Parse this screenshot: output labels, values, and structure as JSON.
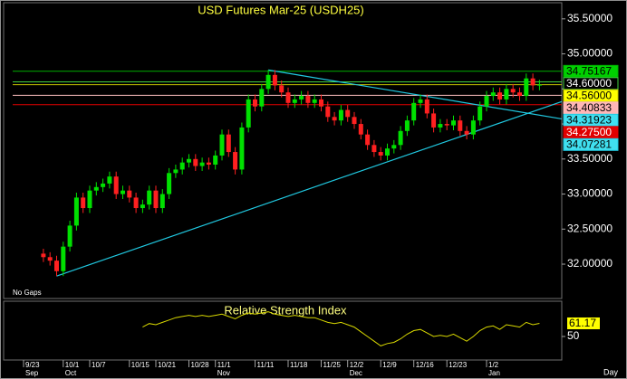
{
  "chart_data": {
    "type": "candlestick",
    "title": "USD Futures Mar-25 (USDH25)",
    "gap_mode": "No Gaps",
    "period": "Day",
    "categories": [
      "9/23",
      null,
      null,
      null,
      null,
      null,
      "10/1",
      null,
      null,
      null,
      "10/7",
      null,
      null,
      null,
      null,
      null,
      "10/15",
      null,
      null,
      null,
      "10/21",
      null,
      null,
      null,
      null,
      "10/28",
      null,
      null,
      null,
      "11/1",
      null,
      null,
      null,
      null,
      null,
      "11/11",
      null,
      null,
      null,
      null,
      "11/18",
      null,
      null,
      null,
      null,
      "11/25",
      null,
      null,
      null,
      "12/2",
      null,
      null,
      null,
      null,
      "12/9",
      null,
      null,
      null,
      null,
      "12/16",
      null,
      null,
      null,
      null,
      "12/23",
      null,
      null,
      null,
      null,
      null,
      "1/2",
      null,
      null,
      null,
      null,
      null,
      null,
      null,
      null
    ],
    "months": [
      "Sep",
      null,
      null,
      null,
      null,
      null,
      "Oct",
      null,
      null,
      null,
      null,
      null,
      null,
      null,
      null,
      null,
      null,
      null,
      null,
      null,
      null,
      null,
      null,
      null,
      null,
      null,
      null,
      null,
      null,
      "Nov",
      null,
      null,
      null,
      null,
      null,
      null,
      null,
      null,
      null,
      null,
      null,
      null,
      null,
      null,
      null,
      null,
      null,
      null,
      null,
      "Dec",
      null,
      null,
      null,
      null,
      null,
      null,
      null,
      null,
      null,
      null,
      null,
      null,
      null,
      null,
      null,
      null,
      null,
      null,
      null,
      null,
      "Jan",
      null,
      null,
      null,
      null,
      null,
      null,
      null,
      null
    ],
    "open": [
      null,
      null,
      null,
      32.15,
      32.1,
      32.05,
      31.9,
      32.25,
      32.55,
      32.95,
      32.8,
      33.05,
      33.1,
      33.15,
      33.25,
      33.0,
      33.05,
      32.95,
      32.8,
      32.85,
      33.05,
      32.8,
      33.0,
      33.3,
      33.35,
      33.45,
      33.5,
      33.4,
      33.45,
      33.42,
      33.55,
      33.85,
      33.6,
      33.35,
      33.95,
      34.35,
      34.25,
      34.5,
      34.7,
      34.55,
      34.45,
      34.3,
      34.35,
      34.4,
      34.3,
      34.35,
      34.25,
      34.1,
      34.05,
      34.2,
      34.1,
      34.0,
      33.85,
      33.7,
      33.6,
      33.55,
      33.65,
      33.7,
      33.9,
      34.05,
      34.3,
      34.35,
      34.15,
      33.95,
      34.0,
      33.98,
      34.05,
      33.9,
      33.85,
      34.05,
      34.25,
      34.4,
      34.45,
      34.35,
      34.5,
      34.45,
      34.4,
      34.65,
      34.55
    ],
    "high": [
      null,
      null,
      null,
      32.22,
      32.17,
      32.12,
      32.32,
      32.62,
      33.02,
      33.02,
      33.12,
      33.17,
      33.22,
      33.32,
      33.32,
      33.12,
      33.12,
      33.02,
      32.92,
      33.12,
      33.12,
      33.07,
      33.37,
      33.42,
      33.52,
      33.57,
      33.57,
      33.52,
      33.52,
      33.62,
      33.92,
      33.92,
      33.67,
      34.02,
      34.42,
      34.42,
      34.57,
      34.77,
      34.77,
      34.62,
      34.52,
      34.42,
      34.47,
      34.47,
      34.42,
      34.42,
      34.32,
      34.17,
      34.27,
      34.27,
      34.17,
      34.07,
      33.92,
      33.77,
      33.67,
      33.72,
      33.77,
      33.97,
      34.12,
      34.37,
      34.42,
      34.42,
      34.22,
      34.07,
      34.07,
      34.12,
      34.12,
      33.97,
      34.12,
      34.32,
      34.47,
      34.52,
      34.52,
      34.57,
      34.57,
      34.52,
      34.72,
      34.72,
      34.63
    ],
    "low": [
      null,
      null,
      null,
      32.03,
      31.98,
      31.83,
      31.83,
      32.18,
      32.48,
      32.73,
      32.73,
      32.98,
      33.03,
      33.08,
      32.93,
      32.93,
      32.88,
      32.73,
      32.73,
      32.78,
      32.73,
      32.73,
      32.93,
      33.23,
      33.28,
      33.38,
      33.33,
      33.33,
      33.35,
      33.35,
      33.48,
      33.53,
      33.28,
      33.28,
      33.88,
      34.18,
      34.18,
      34.43,
      34.48,
      34.38,
      34.23,
      34.23,
      34.28,
      34.23,
      34.23,
      34.18,
      34.03,
      33.98,
      33.98,
      34.03,
      33.93,
      33.78,
      33.63,
      33.53,
      33.48,
      33.48,
      33.58,
      33.63,
      33.83,
      33.98,
      34.23,
      34.08,
      33.88,
      33.88,
      33.91,
      33.91,
      33.83,
      33.78,
      33.78,
      33.98,
      34.18,
      34.33,
      34.28,
      34.28,
      34.38,
      34.33,
      34.33,
      34.48,
      34.48
    ],
    "close": [
      null,
      null,
      null,
      32.1,
      32.05,
      31.9,
      32.25,
      32.55,
      32.95,
      32.8,
      33.05,
      33.1,
      33.15,
      33.25,
      33.0,
      33.05,
      32.95,
      32.8,
      32.85,
      33.05,
      32.8,
      33.0,
      33.3,
      33.35,
      33.45,
      33.5,
      33.4,
      33.45,
      33.42,
      33.55,
      33.85,
      33.6,
      33.35,
      33.95,
      34.35,
      34.25,
      34.5,
      34.7,
      34.55,
      34.45,
      34.3,
      34.35,
      34.4,
      34.3,
      34.35,
      34.25,
      34.1,
      34.05,
      34.2,
      34.1,
      34.0,
      33.85,
      33.7,
      33.6,
      33.55,
      33.65,
      33.7,
      33.9,
      34.05,
      34.3,
      34.35,
      34.15,
      33.95,
      34.0,
      33.98,
      34.05,
      33.9,
      33.85,
      34.05,
      34.25,
      34.4,
      34.45,
      34.35,
      34.5,
      34.45,
      34.4,
      34.65,
      34.55,
      34.56
    ],
    "up_color": "#00e000",
    "down_color": "#ff2020",
    "ylim": [
      31.51,
      35.73
    ],
    "yticks": [
      {
        "value": 32,
        "label": "32.00000"
      },
      {
        "value": 32.5,
        "label": "32.50000"
      },
      {
        "value": 33,
        "label": "33.00000"
      },
      {
        "value": 33.5,
        "label": "33.50000"
      },
      {
        "value": 34,
        "label": "34.00000"
      },
      {
        "value": 34.5,
        "label": "34.50000"
      },
      {
        "value": 35,
        "label": "35.00000"
      },
      {
        "value": 35.5,
        "label": "35.50000"
      }
    ],
    "levels": [
      {
        "value": 34.75167,
        "label": "34.75167",
        "color": "#00b000",
        "label_bg": "#00d000",
        "label_fg": "#000000"
      },
      {
        "value": 34.6,
        "label": "34.60000",
        "color": "#40d040",
        "label_bg": "#000000",
        "label_fg": "#ffffff"
      },
      {
        "value": 34.56,
        "label": "34.56000",
        "color": "#c8c800",
        "label_bg": "#ffff00",
        "label_fg": "#000000"
      },
      {
        "value": 34.40833,
        "label": "34.40833",
        "color": "#ffc0c0",
        "label_bg": "#ffb6b6",
        "label_fg": "#000000"
      },
      {
        "value": 34.275,
        "label": "34.27500",
        "color": "#e00000",
        "label_bg": "#e00000",
        "label_fg": "#ffffff"
      }
    ],
    "trendlines": [
      {
        "start": 5,
        "start_value": 31.83,
        "end_value": 34.31923,
        "end_label": "34.31923",
        "color": "#20c8e0",
        "label_bg": "#40e0f0",
        "label_fg": "#000000"
      },
      {
        "start": 37,
        "start_value": 34.77,
        "end_value": 34.07281,
        "end_label": "34.07281",
        "color": "#20c8e0",
        "label_bg": "#40e0f0",
        "label_fg": "#000000"
      }
    ],
    "rsi": {
      "title": "Relative Strength Index",
      "color": "#d8d800",
      "ylim": [
        30,
        80
      ],
      "yticks": [
        50
      ],
      "values": [
        null,
        null,
        null,
        null,
        null,
        null,
        null,
        null,
        null,
        null,
        null,
        null,
        null,
        null,
        null,
        null,
        null,
        null,
        58,
        61,
        60,
        62,
        64,
        66,
        67,
        68,
        67,
        68,
        67,
        68,
        69,
        67,
        65,
        68,
        70,
        69,
        70,
        71,
        69,
        68,
        67,
        68,
        67,
        66,
        66,
        64,
        62,
        61,
        62,
        60,
        58,
        54,
        50,
        46,
        42,
        44,
        45,
        48,
        52,
        55,
        56,
        53,
        50,
        51,
        50,
        52,
        49,
        46,
        50,
        55,
        58,
        59,
        56,
        60,
        59,
        58,
        62,
        60,
        61.17
      ]
    }
  }
}
